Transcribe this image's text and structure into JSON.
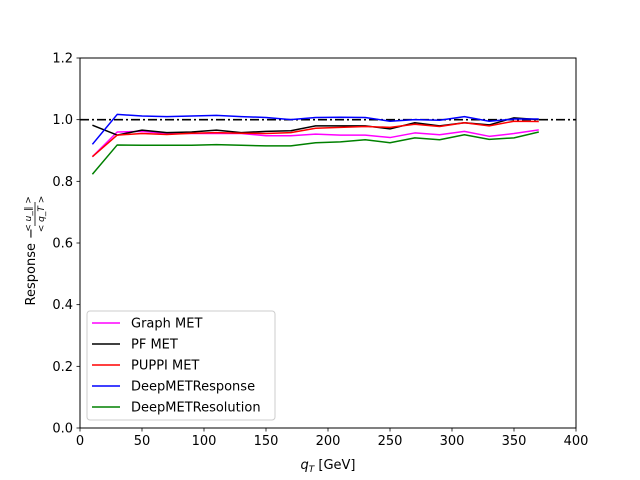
{
  "chart_data": {
    "type": "line",
    "title": "",
    "xlabel": "q_T [GeV]",
    "ylabel": "Response",
    "ylabel_fraction": {
      "numerator": "< u_∥ >",
      "denominator": "< q_T >"
    },
    "xlim": [
      0,
      400
    ],
    "ylim": [
      0.0,
      1.2
    ],
    "xticks": [
      0,
      50,
      100,
      150,
      200,
      250,
      300,
      350,
      400
    ],
    "yticks": [
      0.0,
      0.2,
      0.4,
      0.6,
      0.8,
      1.0,
      1.2
    ],
    "xtick_labels": [
      "0",
      "50",
      "100",
      "150",
      "200",
      "250",
      "300",
      "350",
      "400"
    ],
    "ytick_labels": [
      "0.0",
      "0.2",
      "0.4",
      "0.6",
      "0.8",
      "1.0",
      "1.2"
    ],
    "grid": false,
    "legend_position": "lower-left",
    "reference_line": {
      "y": 1.0,
      "style": "dash-dot",
      "color": "#000000"
    },
    "x": [
      10,
      30,
      50,
      70,
      90,
      110,
      130,
      150,
      170,
      190,
      210,
      230,
      250,
      270,
      290,
      310,
      330,
      350,
      370
    ],
    "series": [
      {
        "name": "Graph MET",
        "color": "#ff00ff",
        "values": [
          0.88,
          0.96,
          0.962,
          0.955,
          0.955,
          0.955,
          0.955,
          0.948,
          0.948,
          0.953,
          0.95,
          0.95,
          0.942,
          0.957,
          0.951,
          0.962,
          0.946,
          0.955,
          0.967
        ]
      },
      {
        "name": "PF MET",
        "color": "#000000",
        "values": [
          0.982,
          0.95,
          0.966,
          0.958,
          0.96,
          0.966,
          0.958,
          0.962,
          0.964,
          0.98,
          0.98,
          0.98,
          0.97,
          0.99,
          0.98,
          0.99,
          0.983,
          1.006,
          1.0
        ]
      },
      {
        "name": "PUPPI MET",
        "color": "#ff0000",
        "values": [
          0.88,
          0.95,
          0.955,
          0.952,
          0.956,
          0.958,
          0.956,
          0.955,
          0.958,
          0.972,
          0.975,
          0.978,
          0.975,
          0.985,
          0.978,
          0.99,
          0.98,
          0.995,
          0.994
        ]
      },
      {
        "name": "DeepMETResponse",
        "color": "#0000ff",
        "values": [
          0.92,
          1.017,
          1.012,
          1.01,
          1.012,
          1.014,
          1.01,
          1.007,
          1.0,
          1.007,
          1.008,
          1.007,
          0.995,
          1.0,
          0.998,
          1.01,
          0.995,
          1.002,
          1.002
        ]
      },
      {
        "name": "DeepMETResolution",
        "color": "#008000",
        "values": [
          0.823,
          0.918,
          0.917,
          0.917,
          0.917,
          0.919,
          0.917,
          0.915,
          0.915,
          0.925,
          0.928,
          0.935,
          0.925,
          0.941,
          0.935,
          0.951,
          0.936,
          0.941,
          0.96
        ]
      }
    ]
  }
}
